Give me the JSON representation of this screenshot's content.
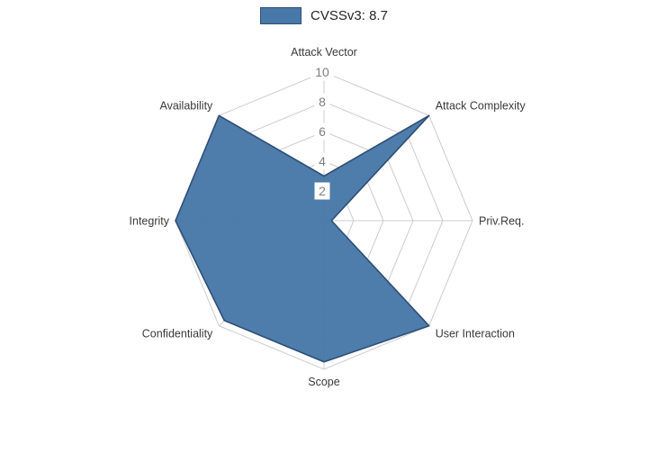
{
  "legend": {
    "label": "CVSSv3: 8.7",
    "swatch_color": "#4878a8",
    "swatch_border": "#2d4f76"
  },
  "chart_data": {
    "type": "radar",
    "title": "CVSSv3: 8.7",
    "categories": [
      "Attack Vector",
      "Attack Complexity",
      "Priv.Req.",
      "User Interaction",
      "Scope",
      "Confidentiality",
      "Integrity",
      "Availability"
    ],
    "series": [
      {
        "name": "CVSSv3: 8.7",
        "values": [
          3,
          10,
          0.5,
          10,
          9.5,
          9.5,
          10,
          10
        ],
        "fill_color": "#4878a8",
        "line_color": "#2d4f76"
      }
    ],
    "radial_ticks": [
      2,
      4,
      6,
      8,
      10
    ],
    "rlim": [
      0,
      10
    ],
    "grid": true,
    "grid_color": "#cccccc",
    "tick_label_color": "#7f7f7f",
    "axis_label_color": "#3a3a3a",
    "legend_position": "top"
  }
}
